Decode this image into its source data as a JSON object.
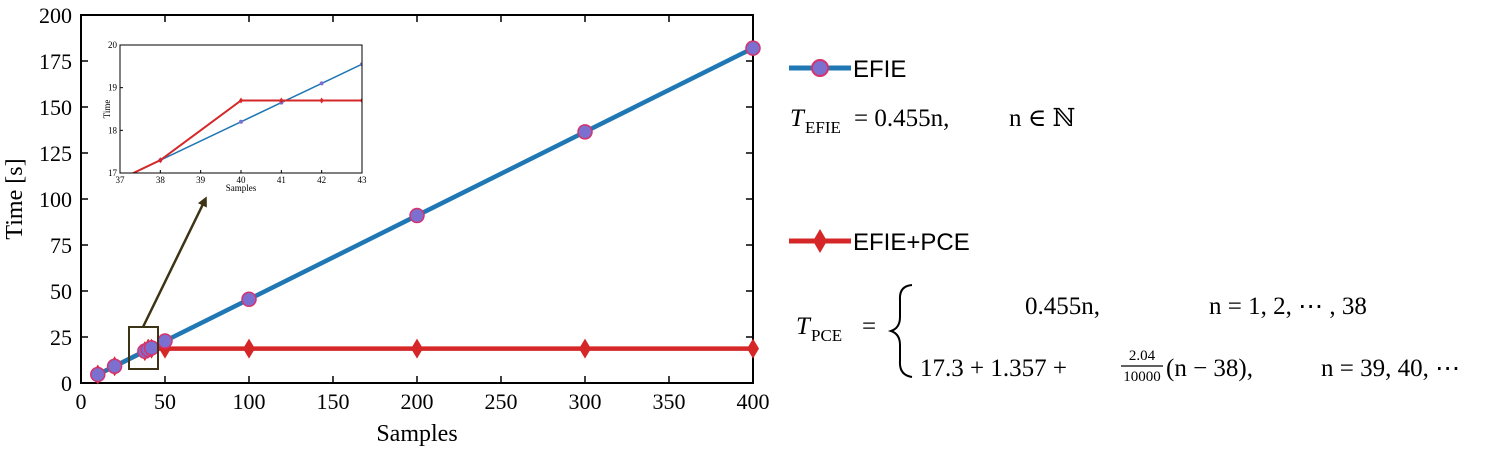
{
  "chart_data": [
    {
      "type": "line",
      "xlabel": "Samples",
      "ylabel": "Time [s]",
      "xlim": [
        0,
        400
      ],
      "ylim": [
        0,
        200
      ],
      "xticks": [
        0,
        50,
        100,
        150,
        200,
        250,
        300,
        350,
        400
      ],
      "yticks": [
        0,
        25,
        50,
        75,
        100,
        125,
        150,
        175,
        200
      ],
      "grid": false,
      "legend_position": "right",
      "series": [
        {
          "name": "EFIE",
          "color": "#1f77b4",
          "marker": "circle",
          "marker_color": "#7b6fd0",
          "x": [
            10,
            20,
            38,
            40,
            42,
            50,
            100,
            200,
            300,
            400
          ],
          "y": [
            4.6,
            9.1,
            17.3,
            18.2,
            19.1,
            22.8,
            45.5,
            91.0,
            136.5,
            182.0
          ]
        },
        {
          "name": "EFIE+PCE",
          "color": "#d62728",
          "marker": "diamond",
          "marker_color": "#d62728",
          "x": [
            10,
            20,
            38,
            40,
            42,
            50,
            100,
            200,
            300,
            400
          ],
          "y": [
            4.6,
            9.1,
            17.3,
            18.7,
            18.7,
            18.7,
            18.7,
            18.7,
            18.7,
            18.7
          ]
        }
      ]
    },
    {
      "type": "line",
      "xlabel": "Samples",
      "ylabel": "Time",
      "xlim": [
        37,
        43
      ],
      "ylim": [
        17,
        20
      ],
      "xticks": [
        37,
        38,
        39,
        40,
        41,
        42,
        43
      ],
      "yticks": [
        17,
        18,
        19,
        20
      ],
      "grid": false,
      "series": [
        {
          "name": "EFIE",
          "color": "#1f77b4",
          "x": [
            37,
            38,
            40,
            41,
            42,
            43
          ],
          "y": [
            16.85,
            17.3,
            18.2,
            18.65,
            19.1,
            19.55
          ]
        },
        {
          "name": "EFIE+PCE",
          "color": "#d62728",
          "x": [
            37,
            38,
            40,
            41,
            42,
            43
          ],
          "y": [
            16.85,
            17.3,
            18.7,
            18.7,
            18.7,
            18.7
          ]
        }
      ]
    }
  ],
  "equations": {
    "efie": {
      "lhs_symbol": "T",
      "lhs_sub": "EFIE",
      "rhs": "= 0.455n,",
      "domain": "n ∈ ℕ"
    },
    "pce": {
      "lhs_symbol": "T",
      "lhs_sub": "PCE",
      "equals": "=",
      "case1_expr": "0.455n,",
      "case1_cond": "n = 1, 2, ⋯ , 38",
      "case2_expr_a": "17.3 + 1.357 +",
      "frac_num": "2.04",
      "frac_den": "10000",
      "case2_expr_b": "(n − 38),",
      "case2_cond": "n = 39, 40, ⋯"
    }
  }
}
